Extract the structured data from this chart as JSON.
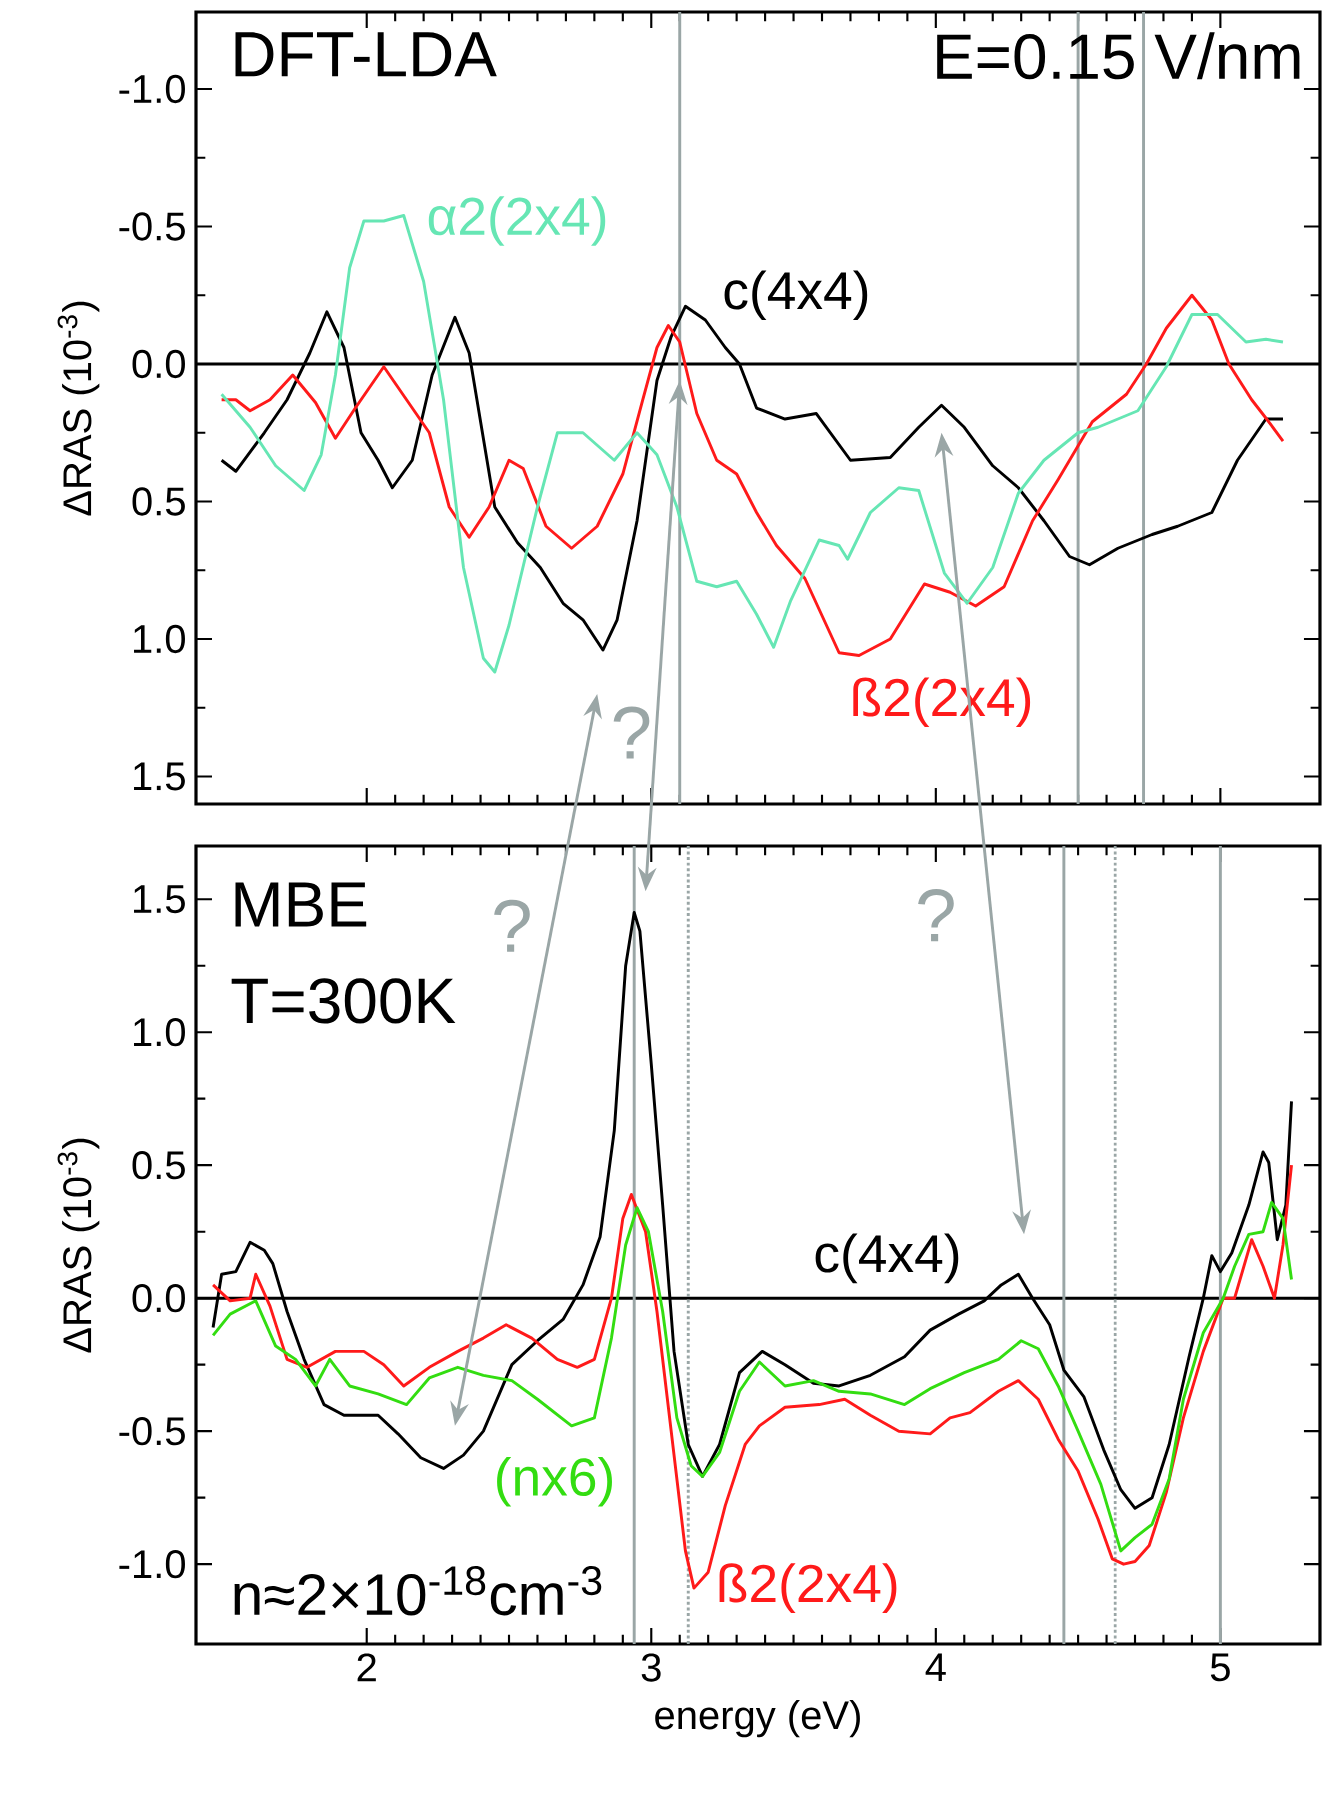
{
  "chart_data": [
    {
      "type": "line",
      "ylabel": "ΔRAS  (10$^{-3}$)",
      "xlim": [
        1.4,
        5.35
      ],
      "ylim": [
        1.6,
        -1.28
      ],
      "xticks": [
        2,
        3,
        4,
        5
      ],
      "tick_labels": "y",
      "yticks": [
        {
          "value": -1.0,
          "label": "-1.0"
        },
        {
          "value": -0.5,
          "label": "-0.5"
        },
        {
          "value": 0,
          "label": "0.0"
        },
        {
          "value": 0.5,
          "label": "0.5"
        },
        {
          "value": 1.0,
          "label": "1.0"
        },
        {
          "value": 1.5,
          "label": "1.5"
        }
      ],
      "annotations": [
        "DFT-LDA",
        "E=0.15 V/nm",
        "?"
      ],
      "ref_lines": [
        {
          "axis": "y",
          "value": 0,
          "color": "#000000",
          "line_style": "solid"
        },
        {
          "axis": "x",
          "value": 3.1,
          "color": "#9aa6a6",
          "line_style": "solid"
        },
        {
          "axis": "x",
          "value": 4.5,
          "color": "#9aa6a6",
          "line_style": "solid"
        },
        {
          "axis": "x",
          "value": 4.73,
          "color": "#9aa6a6",
          "line_style": "solid"
        }
      ],
      "series": [
        {
          "name": "c(4x4)",
          "color": "#000000",
          "x": [
            1.49,
            1.54,
            1.64,
            1.72,
            1.8,
            1.86,
            1.92,
            1.98,
            2.04,
            2.09,
            2.16,
            2.23,
            2.31,
            2.36,
            2.45,
            2.53,
            2.61,
            2.69,
            2.76,
            2.83,
            2.88,
            2.95,
            3.02,
            3.07,
            3.12,
            3.19,
            3.26,
            3.31,
            3.37,
            3.47,
            3.58,
            3.7,
            3.84,
            3.94,
            4.02,
            4.1,
            4.2,
            4.29,
            4.38,
            4.47,
            4.54,
            4.64,
            4.76,
            4.85,
            4.97,
            5.06,
            5.16,
            5.22
          ],
          "values": [
            0.35,
            0.39,
            0.25,
            0.13,
            -0.04,
            -0.19,
            -0.06,
            0.25,
            0.35,
            0.45,
            0.35,
            0.04,
            -0.17,
            -0.04,
            0.52,
            0.65,
            0.74,
            0.87,
            0.93,
            1.04,
            0.93,
            0.57,
            0.06,
            -0.1,
            -0.21,
            -0.16,
            -0.06,
            0.0,
            0.16,
            0.2,
            0.18,
            0.35,
            0.34,
            0.23,
            0.15,
            0.23,
            0.37,
            0.45,
            0.57,
            0.7,
            0.73,
            0.67,
            0.62,
            0.59,
            0.54,
            0.35,
            0.2,
            0.2
          ]
        },
        {
          "name": "ß2(2x4)",
          "color": "#ff1a1a",
          "x": [
            1.49,
            1.54,
            1.59,
            1.66,
            1.74,
            1.82,
            1.89,
            1.96,
            2.06,
            2.14,
            2.22,
            2.29,
            2.36,
            2.43,
            2.5,
            2.55,
            2.63,
            2.72,
            2.81,
            2.9,
            2.97,
            3.02,
            3.06,
            3.1,
            3.16,
            3.23,
            3.3,
            3.37,
            3.44,
            3.54,
            3.66,
            3.73,
            3.84,
            3.96,
            4.05,
            4.14,
            4.24,
            4.34,
            4.43,
            4.55,
            4.67,
            4.74,
            4.81,
            4.9,
            4.97,
            5.03,
            5.11,
            5.17,
            5.22
          ],
          "values": [
            0.13,
            0.13,
            0.17,
            0.13,
            0.04,
            0.14,
            0.27,
            0.16,
            0.01,
            0.13,
            0.25,
            0.52,
            0.63,
            0.52,
            0.35,
            0.38,
            0.59,
            0.67,
            0.59,
            0.4,
            0.13,
            -0.06,
            -0.14,
            -0.08,
            0.18,
            0.35,
            0.4,
            0.54,
            0.66,
            0.78,
            1.05,
            1.06,
            1.0,
            0.8,
            0.83,
            0.88,
            0.81,
            0.57,
            0.42,
            0.21,
            0.11,
            0.0,
            -0.13,
            -0.25,
            -0.16,
            0.0,
            0.13,
            0.21,
            0.28
          ]
        },
        {
          "name": "α2(2x4)",
          "color": "#66e6b4",
          "x": [
            1.49,
            1.59,
            1.68,
            1.78,
            1.84,
            1.89,
            1.94,
            1.99,
            2.06,
            2.13,
            2.2,
            2.27,
            2.34,
            2.41,
            2.45,
            2.5,
            2.6,
            2.67,
            2.76,
            2.87,
            2.95,
            3.02,
            3.09,
            3.16,
            3.23,
            3.3,
            3.37,
            3.43,
            3.49,
            3.59,
            3.66,
            3.69,
            3.77,
            3.87,
            3.94,
            4.03,
            4.11,
            4.2,
            4.29,
            4.38,
            4.5,
            4.57,
            4.71,
            4.81,
            4.9,
            4.99,
            5.09,
            5.16,
            5.22
          ],
          "values": [
            0.11,
            0.23,
            0.37,
            0.46,
            0.33,
            0.04,
            -0.35,
            -0.52,
            -0.52,
            -0.54,
            -0.3,
            0.13,
            0.74,
            1.07,
            1.12,
            0.95,
            0.52,
            0.25,
            0.25,
            0.35,
            0.25,
            0.33,
            0.52,
            0.79,
            0.81,
            0.79,
            0.91,
            1.03,
            0.86,
            0.64,
            0.66,
            0.71,
            0.54,
            0.45,
            0.46,
            0.76,
            0.87,
            0.74,
            0.47,
            0.35,
            0.25,
            0.23,
            0.17,
            0.01,
            -0.18,
            -0.18,
            -0.08,
            -0.09,
            -0.08
          ]
        }
      ]
    },
    {
      "type": "line",
      "xlabel": "energy  (eV)",
      "ylabel": "ΔRAS  (10$^{-3}$)",
      "xlim": [
        1.4,
        5.35
      ],
      "ylim": [
        -1.3,
        1.7
      ],
      "xticks": [
        2,
        3,
        4,
        5
      ],
      "yticks": [
        {
          "value": -1.0,
          "label": "-1.0"
        },
        {
          "value": -0.5,
          "label": "-0.5"
        },
        {
          "value": 0,
          "label": "0.0"
        },
        {
          "value": 0.5,
          "label": "0.5"
        },
        {
          "value": 1.0,
          "label": "1.0"
        },
        {
          "value": 1.5,
          "label": "1.5"
        }
      ],
      "annotations": [
        "MBE",
        "T=300K",
        "n≈2×10$^{-18}$cm$^{-3}$",
        "?",
        "?"
      ],
      "ref_lines": [
        {
          "axis": "y",
          "value": 0,
          "color": "#000000",
          "line_style": "solid"
        },
        {
          "axis": "x",
          "value": 2.94,
          "color": "#9aa6a6",
          "line_style": "solid"
        },
        {
          "axis": "x",
          "value": 3.13,
          "color": "#9aa6a6",
          "line_style": "dotted"
        },
        {
          "axis": "x",
          "value": 4.45,
          "color": "#9aa6a6",
          "line_style": "solid"
        },
        {
          "axis": "x",
          "value": 4.63,
          "color": "#9aa6a6",
          "line_style": "dotted"
        },
        {
          "axis": "x",
          "value": 5.0,
          "color": "#9aa6a6",
          "line_style": "solid"
        }
      ],
      "series": [
        {
          "name": "c(4x4)",
          "color": "#000000",
          "x": [
            1.46,
            1.49,
            1.54,
            1.59,
            1.64,
            1.67,
            1.72,
            1.78,
            1.85,
            1.92,
            2.04,
            2.11,
            2.19,
            2.27,
            2.34,
            2.41,
            2.51,
            2.6,
            2.69,
            2.76,
            2.82,
            2.87,
            2.91,
            2.94,
            2.96,
            3.0,
            3.04,
            3.08,
            3.13,
            3.18,
            3.24,
            3.31,
            3.39,
            3.47,
            3.57,
            3.66,
            3.77,
            3.89,
            3.98,
            4.08,
            4.17,
            4.23,
            4.29,
            4.34,
            4.4,
            4.45,
            4.52,
            4.59,
            4.65,
            4.7,
            4.76,
            4.82,
            4.89,
            4.94,
            4.97,
            5.0,
            5.04,
            5.1,
            5.15,
            5.17,
            5.2,
            5.23,
            5.25
          ],
          "values": [
            -0.11,
            0.09,
            0.1,
            0.21,
            0.18,
            0.13,
            -0.05,
            -0.23,
            -0.4,
            -0.44,
            -0.44,
            -0.51,
            -0.6,
            -0.64,
            -0.59,
            -0.5,
            -0.25,
            -0.16,
            -0.08,
            0.05,
            0.23,
            0.63,
            1.25,
            1.45,
            1.38,
            0.88,
            0.35,
            -0.2,
            -0.55,
            -0.67,
            -0.55,
            -0.28,
            -0.2,
            -0.25,
            -0.32,
            -0.33,
            -0.29,
            -0.22,
            -0.12,
            -0.06,
            -0.01,
            0.05,
            0.09,
            0.0,
            -0.1,
            -0.27,
            -0.37,
            -0.57,
            -0.72,
            -0.79,
            -0.75,
            -0.55,
            -0.22,
            0.0,
            0.16,
            0.1,
            0.17,
            0.35,
            0.55,
            0.51,
            0.22,
            0.35,
            0.74
          ]
        },
        {
          "name": "ß2(2x4)",
          "color": "#ff1a1a",
          "x": [
            1.46,
            1.52,
            1.59,
            1.61,
            1.66,
            1.72,
            1.79,
            1.89,
            1.99,
            2.06,
            2.13,
            2.22,
            2.32,
            2.41,
            2.49,
            2.58,
            2.67,
            2.74,
            2.8,
            2.86,
            2.9,
            2.93,
            2.98,
            3.02,
            3.07,
            3.12,
            3.15,
            3.2,
            3.26,
            3.33,
            3.38,
            3.47,
            3.59,
            3.68,
            3.77,
            3.87,
            3.98,
            4.05,
            4.12,
            4.22,
            4.29,
            4.36,
            4.43,
            4.5,
            4.57,
            4.62,
            4.66,
            4.7,
            4.75,
            4.81,
            4.87,
            4.94,
            5.01,
            5.05,
            5.11,
            5.15,
            5.19,
            5.22,
            5.25
          ],
          "values": [
            0.05,
            -0.01,
            0.0,
            0.09,
            -0.03,
            -0.23,
            -0.26,
            -0.2,
            -0.2,
            -0.25,
            -0.33,
            -0.26,
            -0.2,
            -0.15,
            -0.1,
            -0.15,
            -0.23,
            -0.26,
            -0.23,
            0.0,
            0.3,
            0.39,
            0.25,
            -0.05,
            -0.5,
            -0.95,
            -1.09,
            -1.03,
            -0.78,
            -0.55,
            -0.48,
            -0.41,
            -0.4,
            -0.38,
            -0.44,
            -0.5,
            -0.51,
            -0.45,
            -0.43,
            -0.35,
            -0.31,
            -0.38,
            -0.53,
            -0.65,
            -0.83,
            -0.98,
            -1.0,
            -0.99,
            -0.93,
            -0.73,
            -0.45,
            -0.2,
            0.0,
            0.0,
            0.22,
            0.12,
            0.0,
            0.2,
            0.5
          ]
        },
        {
          "name": "(nx6)",
          "color": "#33dd11",
          "x": [
            1.46,
            1.52,
            1.61,
            1.68,
            1.75,
            1.82,
            1.87,
            1.94,
            2.04,
            2.14,
            2.22,
            2.32,
            2.41,
            2.51,
            2.6,
            2.72,
            2.8,
            2.86,
            2.91,
            2.95,
            2.99,
            3.04,
            3.09,
            3.14,
            3.18,
            3.24,
            3.31,
            3.38,
            3.47,
            3.57,
            3.66,
            3.77,
            3.89,
            3.98,
            4.1,
            4.22,
            4.3,
            4.36,
            4.43,
            4.5,
            4.58,
            4.65,
            4.7,
            4.76,
            4.82,
            4.87,
            4.94,
            5.01,
            5.05,
            5.1,
            5.15,
            5.18,
            5.22,
            5.25
          ],
          "values": [
            -0.14,
            -0.06,
            -0.01,
            -0.18,
            -0.23,
            -0.33,
            -0.23,
            -0.33,
            -0.36,
            -0.4,
            -0.3,
            -0.26,
            -0.29,
            -0.31,
            -0.38,
            -0.48,
            -0.45,
            -0.15,
            0.2,
            0.34,
            0.25,
            -0.05,
            -0.45,
            -0.63,
            -0.67,
            -0.58,
            -0.35,
            -0.24,
            -0.33,
            -0.31,
            -0.35,
            -0.36,
            -0.4,
            -0.34,
            -0.28,
            -0.23,
            -0.16,
            -0.19,
            -0.33,
            -0.5,
            -0.7,
            -0.95,
            -0.9,
            -0.85,
            -0.68,
            -0.38,
            -0.13,
            0.0,
            0.12,
            0.24,
            0.25,
            0.36,
            0.3,
            0.07
          ]
        }
      ]
    }
  ]
}
